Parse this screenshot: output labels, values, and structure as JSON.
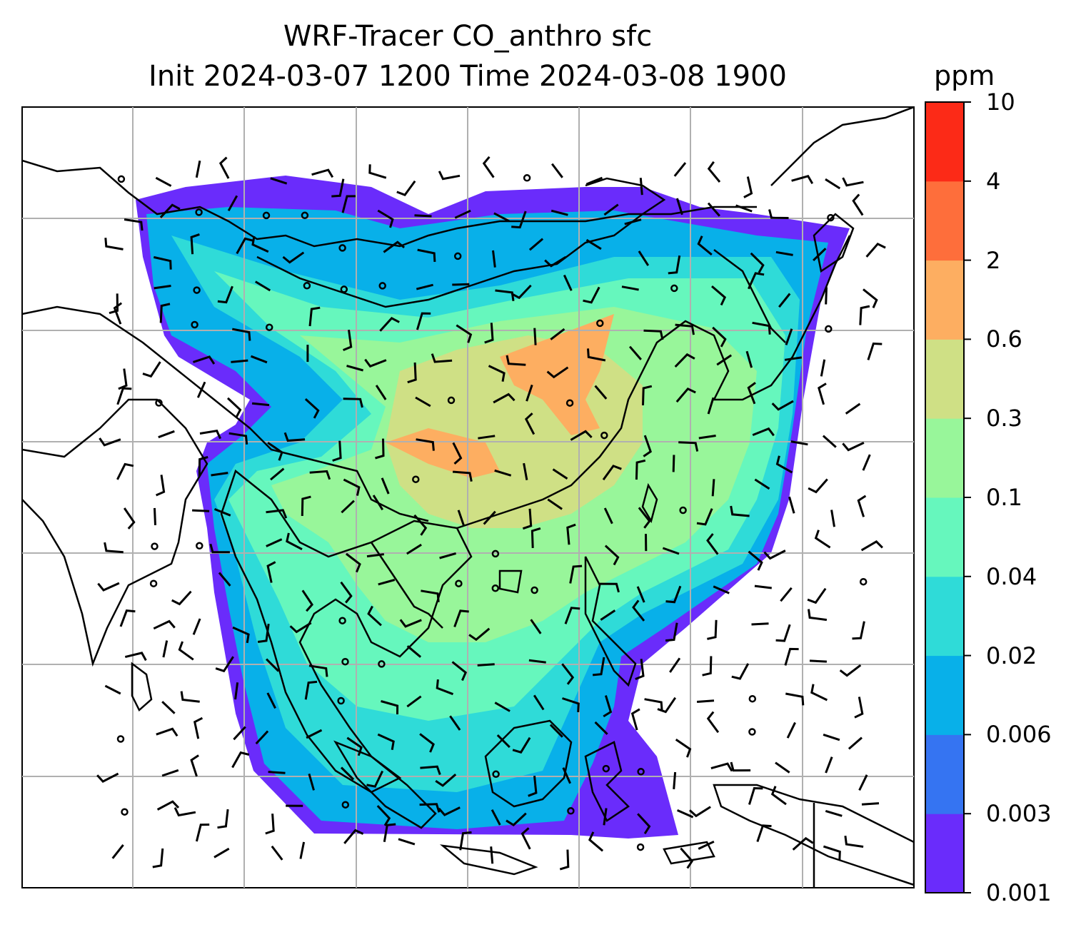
{
  "chart_data": {
    "type": "heatmap",
    "title": "WRF-Tracer CO_anthro sfc",
    "subtitle": "Init 2024-03-07 1200 Time 2024-03-08 1900",
    "colorbar": {
      "unit": "ppm",
      "levels": [
        "0.001",
        "0.003",
        "0.006",
        "0.02",
        "0.04",
        "0.1",
        "0.3",
        "0.6",
        "2",
        "4",
        "10"
      ],
      "colors": [
        "#6a2cfb",
        "#3574f2",
        "#08b0e9",
        "#2fdbd8",
        "#66f7bd",
        "#98f69a",
        "#cfe085",
        "#fdae61",
        "#fe6e3b",
        "#fc2a17"
      ]
    },
    "grid": true,
    "overlays": [
      "coastlines",
      "country-borders",
      "wind-barbs",
      "calm-circles"
    ]
  }
}
